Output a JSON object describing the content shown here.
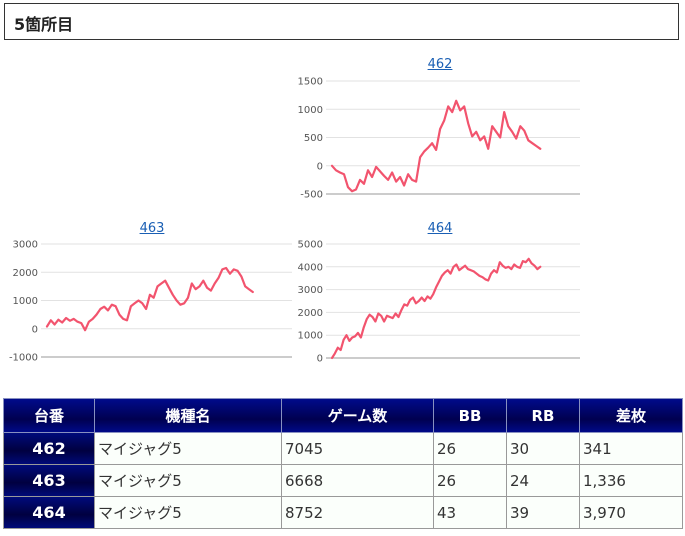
{
  "page": {
    "title": "5箇所目"
  },
  "chart_data": [
    {
      "type": "line",
      "title": "462",
      "color": "#f2546e",
      "ylim": [
        -500,
        1500
      ],
      "yticks": [
        1500,
        1000,
        500,
        0,
        -500
      ],
      "y": [
        0,
        -80,
        -120,
        -150,
        -380,
        -450,
        -420,
        -250,
        -320,
        -80,
        -200,
        -20,
        -100,
        -180,
        -250,
        -120,
        -280,
        -200,
        -350,
        -150,
        -250,
        -280,
        150,
        250,
        320,
        400,
        280,
        650,
        800,
        1050,
        950,
        1150,
        980,
        1050,
        750,
        520,
        600,
        450,
        520,
        300,
        700,
        600,
        500,
        950,
        700,
        600,
        480,
        700,
        620,
        450,
        400,
        350,
        300
      ]
    },
    {
      "type": "line",
      "title": "463",
      "color": "#f2546e",
      "ylim": [
        -1000,
        3000
      ],
      "yticks": [
        3000,
        2000,
        1000,
        0,
        -1000
      ],
      "y": [
        80,
        300,
        150,
        320,
        220,
        380,
        280,
        350,
        250,
        200,
        -50,
        250,
        350,
        500,
        700,
        780,
        650,
        850,
        800,
        500,
        350,
        300,
        800,
        900,
        1000,
        900,
        700,
        1200,
        1100,
        1500,
        1600,
        1700,
        1450,
        1200,
        1000,
        850,
        900,
        1100,
        1600,
        1400,
        1500,
        1700,
        1450,
        1350,
        1600,
        1800,
        2100,
        2150,
        1950,
        2100,
        2050,
        1850,
        1500,
        1400,
        1300
      ]
    },
    {
      "type": "line",
      "title": "464",
      "color": "#f2546e",
      "ylim": [
        0,
        5000
      ],
      "yticks": [
        5000,
        4000,
        3000,
        2000,
        1000,
        0
      ],
      "y": [
        0,
        200,
        450,
        350,
        800,
        1000,
        750,
        900,
        950,
        1100,
        900,
        1350,
        1700,
        1900,
        1800,
        1600,
        1950,
        1850,
        1600,
        1850,
        1800,
        1750,
        1950,
        1800,
        2100,
        2350,
        2300,
        2550,
        2650,
        2400,
        2500,
        2650,
        2500,
        2700,
        2600,
        2800,
        3100,
        3350,
        3600,
        3750,
        3850,
        3700,
        4000,
        4100,
        3850,
        3950,
        4050,
        3900,
        3850,
        3800,
        3700,
        3600,
        3550,
        3450,
        3400,
        3700,
        3850,
        3750,
        4200,
        4050,
        3950,
        4000,
        3900,
        4100,
        4000,
        3950,
        4250,
        4200,
        4350,
        4150,
        4050,
        3900,
        4000
      ]
    }
  ],
  "table": {
    "headers": [
      "台番",
      "機種名",
      "ゲーム数",
      "BB",
      "RB",
      "差枚"
    ],
    "rows": [
      [
        "462",
        "マイジャグ5",
        "7045",
        "26",
        "30",
        "341"
      ],
      [
        "463",
        "マイジャグ5",
        "6668",
        "26",
        "24",
        "1,336"
      ],
      [
        "464",
        "マイジャグ5",
        "8752",
        "43",
        "39",
        "3,970"
      ]
    ]
  }
}
